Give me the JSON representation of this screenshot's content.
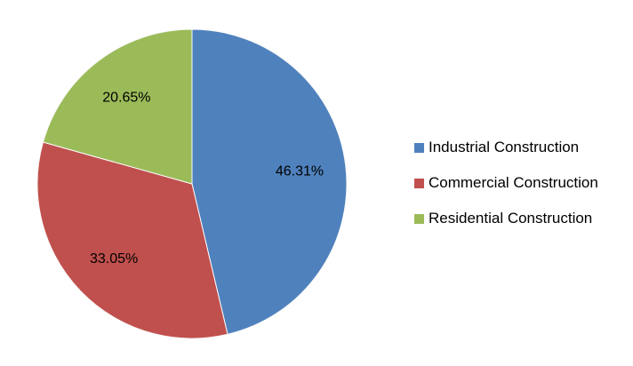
{
  "chart_data": {
    "type": "pie",
    "title": "",
    "slices": [
      {
        "label": "Industrial Construction",
        "value": 46.31,
        "display": "46.31%",
        "color": "#4F81BD"
      },
      {
        "label": "Commercial Construction",
        "value": 33.05,
        "display": "33.05%",
        "color": "#C0504D"
      },
      {
        "label": "Residential Construction",
        "value": 20.65,
        "display": "20.65%",
        "color": "#9BBB59"
      }
    ],
    "start_angle_deg": 0,
    "direction": "clockwise",
    "data_labels": "percent-inside",
    "label_color": "#000000",
    "slice_border_color": "#FAFAFA",
    "legend_position": "right",
    "background": "#FFFFFF"
  }
}
